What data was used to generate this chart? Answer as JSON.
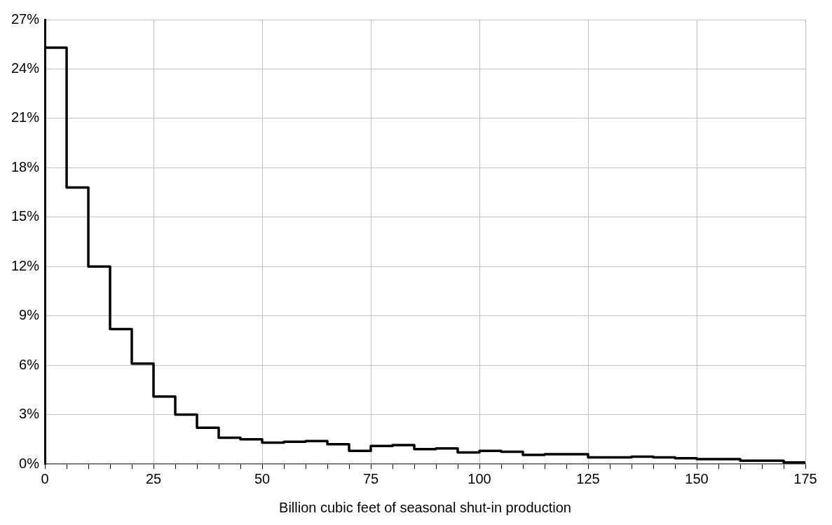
{
  "chart_data": {
    "type": "histogram",
    "xlabel": "Billion cubic feet of seasonal shut-in production",
    "bins": [
      0,
      5,
      10,
      15,
      20,
      25,
      30,
      35,
      40,
      45,
      50,
      55,
      60,
      65,
      70,
      75,
      80,
      85,
      90,
      95,
      100,
      105,
      110,
      115,
      120,
      125,
      130,
      135,
      140,
      145,
      150,
      155,
      160,
      165,
      170,
      175
    ],
    "values": [
      25.3,
      16.8,
      12.0,
      8.2,
      6.1,
      4.1,
      3.0,
      2.2,
      1.6,
      1.5,
      1.3,
      1.35,
      1.4,
      1.2,
      0.8,
      1.1,
      1.15,
      0.9,
      0.95,
      0.7,
      0.8,
      0.75,
      0.55,
      0.6,
      0.6,
      0.4,
      0.4,
      0.45,
      0.4,
      0.35,
      0.3,
      0.3,
      0.2,
      0.2,
      0.1
    ],
    "color": "#000000",
    "xlim": [
      0,
      175
    ],
    "xticks": [
      0,
      {
        "value": 5,
        "label": null
      },
      {
        "value": 10,
        "label": null
      },
      {
        "value": 15,
        "label": null
      },
      {
        "value": 20,
        "label": null
      },
      25,
      {
        "value": 30,
        "label": null
      },
      {
        "value": 35,
        "label": null
      },
      {
        "value": 40,
        "label": null
      },
      {
        "value": 45,
        "label": null
      },
      50,
      {
        "value": 55,
        "label": null
      },
      {
        "value": 60,
        "label": null
      },
      {
        "value": 65,
        "label": null
      },
      {
        "value": 70,
        "label": null
      },
      75,
      {
        "value": 80,
        "label": null
      },
      {
        "value": 85,
        "label": null
      },
      {
        "value": 90,
        "label": null
      },
      {
        "value": 95,
        "label": null
      },
      100,
      {
        "value": 105,
        "label": null
      },
      {
        "value": 110,
        "label": null
      },
      {
        "value": 115,
        "label": null
      },
      {
        "value": 120,
        "label": null
      },
      125,
      {
        "value": 130,
        "label": null
      },
      {
        "value": 135,
        "label": null
      },
      {
        "value": 140,
        "label": null
      },
      {
        "value": 145,
        "label": null
      },
      150,
      {
        "value": 155,
        "label": null
      },
      {
        "value": 160,
        "label": null
      },
      {
        "value": 165,
        "label": null
      },
      {
        "value": 170,
        "label": null
      },
      175
    ],
    "ylim": [
      0,
      27
    ],
    "yticks": [
      {
        "value": 0,
        "label": "0%"
      },
      {
        "value": 3,
        "label": "3%"
      },
      {
        "value": 6,
        "label": "6%"
      },
      {
        "value": 9,
        "label": "9%"
      },
      {
        "value": 12,
        "label": "12%"
      },
      {
        "value": 15,
        "label": "15%"
      },
      {
        "value": 18,
        "label": "18%"
      },
      {
        "value": 21,
        "label": "21%"
      },
      {
        "value": 24,
        "label": "24%"
      },
      {
        "value": 27,
        "label": "27%"
      }
    ],
    "grid": true,
    "legend": false
  }
}
